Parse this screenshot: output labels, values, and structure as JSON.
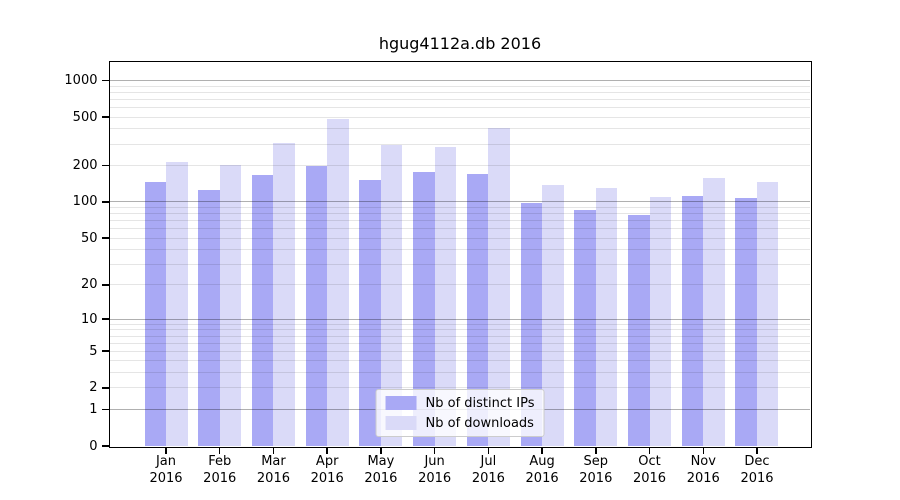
{
  "chart_data": {
    "type": "bar",
    "title": "hgug4112a.db 2016",
    "categories": [
      "Jan 2016",
      "Feb 2016",
      "Mar 2016",
      "Apr 2016",
      "May 2016",
      "Jun 2016",
      "Jul 2016",
      "Aug 2016",
      "Sep 2016",
      "Oct 2016",
      "Nov 2016",
      "Dec 2016"
    ],
    "x_tick_line1": [
      "Jan",
      "Feb",
      "Mar",
      "Apr",
      "May",
      "Jun",
      "Jul",
      "Aug",
      "Sep",
      "Oct",
      "Nov",
      "Dec"
    ],
    "x_tick_line2": "2016",
    "series": [
      {
        "name": "Nb of distinct IPs",
        "key": "distinct-ips",
        "color": "#a9a9f5",
        "values": [
          145,
          126,
          168,
          198,
          152,
          176,
          170,
          98,
          86,
          78,
          111,
          108
        ]
      },
      {
        "name": "Nb of downloads",
        "key": "downloads",
        "color": "#dadaf8",
        "values": [
          215,
          202,
          308,
          480,
          298,
          284,
          405,
          137,
          131,
          110,
          159,
          145
        ]
      }
    ],
    "y_scale": "log10(value+1)",
    "y_ticks": [
      0,
      1,
      2,
      5,
      10,
      20,
      50,
      100,
      200,
      500,
      1000
    ],
    "ylim": [
      0,
      1420
    ],
    "xlabel": "",
    "ylabel": "",
    "grid": "horizontal",
    "legend_position": "lower center"
  },
  "colors": {
    "ips_bar": "#a9a9f5",
    "downloads_bar": "#dadaf8",
    "grid_major": "#b0b0b0",
    "grid_minor": "#e5e5e5",
    "axis": "#000000",
    "background": "#ffffff"
  }
}
